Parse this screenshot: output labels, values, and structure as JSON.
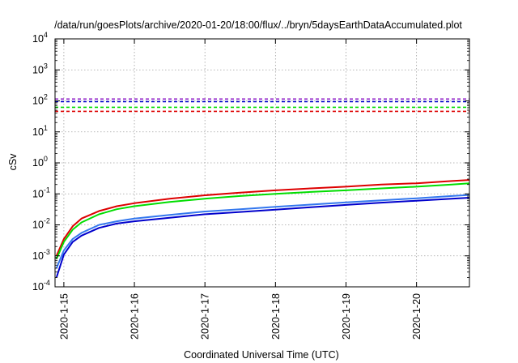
{
  "chart_data": {
    "type": "line",
    "title": "/data/run/goesPlots/archive/2020-01-20/18:00/flux/../bryn/5daysEarthDataAccumulated.plot",
    "xlabel": "Coordinated Universal Time (UTC)",
    "ylabel": "cSv",
    "yscale": "log",
    "xlim": [
      "2020-01-14T21:00",
      "2020-01-20T18:00"
    ],
    "ylim": [
      0.0001,
      10000
    ],
    "x_tick_labels": [
      "2020-1-15",
      "2020-1-16",
      "2020-1-17",
      "2020-1-18",
      "2020-1-19",
      "2020-1-20"
    ],
    "y_tick_labels": [
      {
        "base": "10",
        "exp": "-4"
      },
      {
        "base": "10",
        "exp": "-3"
      },
      {
        "base": "10",
        "exp": "-2"
      },
      {
        "base": "10",
        "exp": "-1"
      },
      {
        "base": "10",
        "exp": "0"
      },
      {
        "base": "10",
        "exp": "1"
      },
      {
        "base": "10",
        "exp": "2"
      },
      {
        "base": "10",
        "exp": "3"
      },
      {
        "base": "10",
        "exp": "4"
      }
    ],
    "grid": true,
    "legend": "none",
    "series": [
      {
        "color": "#dd0000",
        "style": "solid",
        "x": [
          "2020-01-14T21:30",
          "2020-01-15T00:00",
          "2020-01-15T03:00",
          "2020-01-15T06:00",
          "2020-01-15T12:00",
          "2020-01-15T18:00",
          "2020-01-16T00:00",
          "2020-01-16T12:00",
          "2020-01-17T00:00",
          "2020-01-17T12:00",
          "2020-01-18T00:00",
          "2020-01-18T12:00",
          "2020-01-19T00:00",
          "2020-01-19T12:00",
          "2020-01-20T00:00",
          "2020-01-20T12:00",
          "2020-01-20T18:00"
        ],
        "y": [
          0.001,
          0.0035,
          0.009,
          0.016,
          0.028,
          0.04,
          0.05,
          0.07,
          0.09,
          0.11,
          0.13,
          0.15,
          0.17,
          0.2,
          0.22,
          0.26,
          0.28
        ]
      },
      {
        "color": "#00dd00",
        "style": "solid",
        "x": [
          "2020-01-14T21:30",
          "2020-01-15T00:00",
          "2020-01-15T03:00",
          "2020-01-15T06:00",
          "2020-01-15T12:00",
          "2020-01-15T18:00",
          "2020-01-16T00:00",
          "2020-01-16T12:00",
          "2020-01-17T00:00",
          "2020-01-17T12:00",
          "2020-01-18T00:00",
          "2020-01-18T12:00",
          "2020-01-19T00:00",
          "2020-01-19T12:00",
          "2020-01-20T00:00",
          "2020-01-20T12:00",
          "2020-01-20T18:00"
        ],
        "y": [
          0.0008,
          0.0028,
          0.007,
          0.012,
          0.022,
          0.032,
          0.04,
          0.055,
          0.07,
          0.085,
          0.1,
          0.115,
          0.13,
          0.15,
          0.17,
          0.2,
          0.22
        ]
      },
      {
        "color": "#3377ee",
        "style": "solid",
        "x": [
          "2020-01-14T21:30",
          "2020-01-15T00:00",
          "2020-01-15T03:00",
          "2020-01-15T06:00",
          "2020-01-15T12:00",
          "2020-01-15T18:00",
          "2020-01-16T00:00",
          "2020-01-16T12:00",
          "2020-01-17T00:00",
          "2020-01-17T12:00",
          "2020-01-18T00:00",
          "2020-01-18T12:00",
          "2020-01-19T00:00",
          "2020-01-19T12:00",
          "2020-01-20T00:00",
          "2020-01-20T12:00",
          "2020-01-20T18:00"
        ],
        "y": [
          0.0004,
          0.0015,
          0.0035,
          0.0055,
          0.01,
          0.013,
          0.016,
          0.021,
          0.027,
          0.032,
          0.038,
          0.045,
          0.053,
          0.062,
          0.072,
          0.085,
          0.092
        ]
      },
      {
        "color": "#0000cc",
        "style": "solid",
        "x": [
          "2020-01-14T21:30",
          "2020-01-15T00:00",
          "2020-01-15T03:00",
          "2020-01-15T06:00",
          "2020-01-15T12:00",
          "2020-01-15T18:00",
          "2020-01-16T00:00",
          "2020-01-16T12:00",
          "2020-01-17T00:00",
          "2020-01-17T12:00",
          "2020-01-18T00:00",
          "2020-01-18T12:00",
          "2020-01-19T00:00",
          "2020-01-19T12:00",
          "2020-01-20T00:00",
          "2020-01-20T12:00",
          "2020-01-20T18:00"
        ],
        "y": [
          0.0002,
          0.0011,
          0.0028,
          0.0045,
          0.008,
          0.011,
          0.013,
          0.017,
          0.022,
          0.026,
          0.031,
          0.037,
          0.044,
          0.052,
          0.06,
          0.07,
          0.075
        ]
      },
      {
        "color": "#9933cc",
        "style": "dashed",
        "x": [
          "2020-01-14T21:00",
          "2020-01-20T18:00"
        ],
        "y": [
          115,
          115
        ]
      },
      {
        "color": "#0000cc",
        "style": "dashed",
        "x": [
          "2020-01-14T21:00",
          "2020-01-20T18:00"
        ],
        "y": [
          95,
          95
        ]
      },
      {
        "color": "#00dd00",
        "style": "dashed",
        "x": [
          "2020-01-14T21:00",
          "2020-01-20T18:00"
        ],
        "y": [
          62,
          62
        ]
      },
      {
        "color": "#dd0000",
        "style": "dashed",
        "x": [
          "2020-01-14T21:00",
          "2020-01-20T18:00"
        ],
        "y": [
          46,
          46
        ]
      }
    ]
  }
}
